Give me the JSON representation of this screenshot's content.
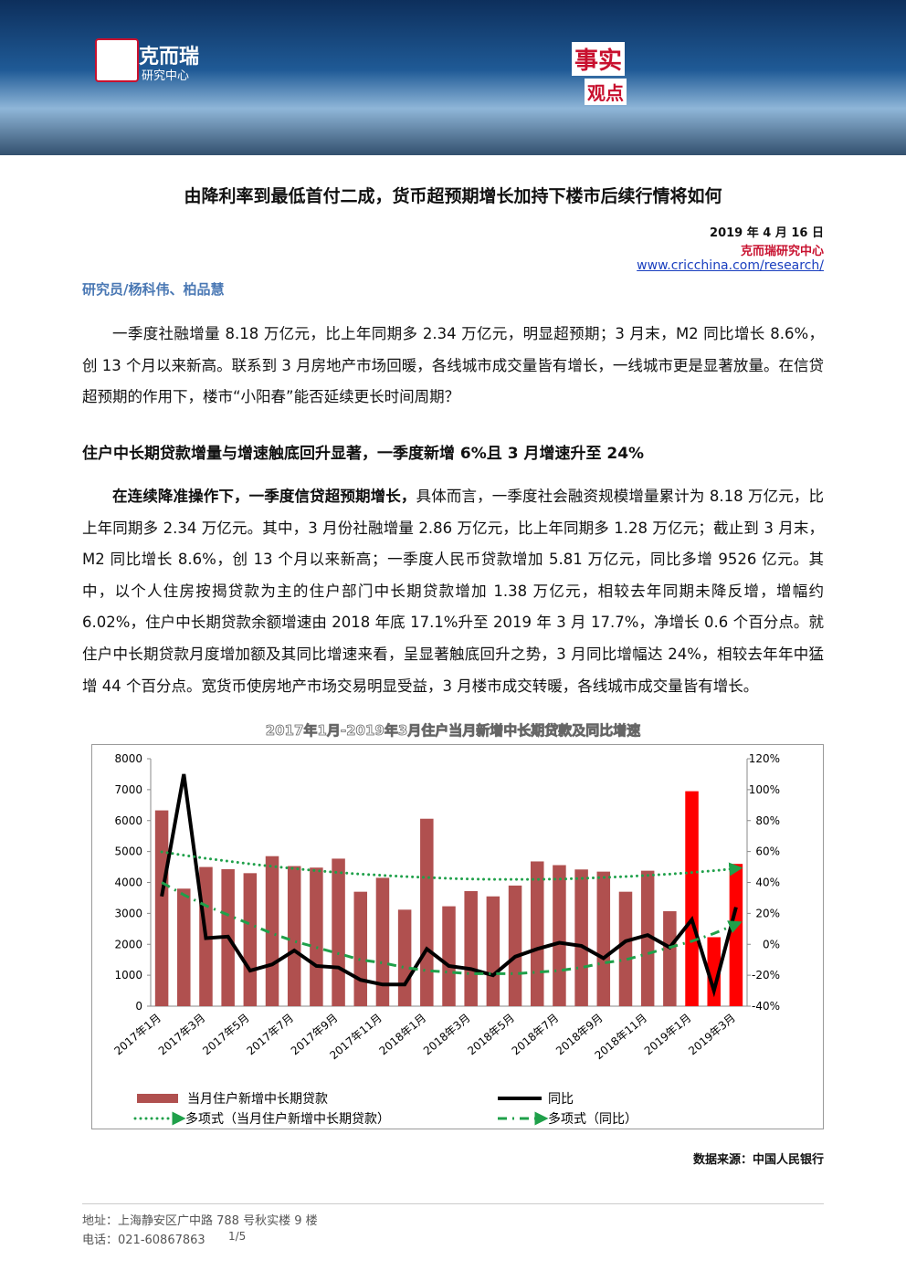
{
  "header": {
    "logo": "克而瑞",
    "logo_sub": "研究中心",
    "slogan_1": "事实",
    "slogan_2": "观点"
  },
  "title": "由降利率到最低首付二成，货币超预期增长加持下楼市后续行情将如何",
  "date": "2019 年 4 月 16 日",
  "org": "克而瑞研究中心",
  "url": "www.cricchina.com/research/",
  "authors": "研究员/杨科伟、柏品慧",
  "paragraphs": [
    {
      "text": "一季度社融增量 8.18 万亿元，比上年同期多 2.34 万亿元，明显超预期；3 月末，M2 同比增长 8.6%，创 13 个月以来新高。联系到 3 月房地产市场回暖，各线城市成交量皆有增长，一线城市更是显著放量。在信贷超预期的作用下，楼市“小阳春”能否延续更长时间周期？"
    }
  ],
  "section_heading": "住户中长期贷款增量与增速触底回升显著，一季度新增 6%且 3 月增速升至 24%",
  "section_paragraph": {
    "lead": "在连续降准操作下，一季度信贷超预期增长，",
    "text": "具体而言，一季度社会融资规模增量累计为 8.18 万亿元，比上年同期多 2.34 万亿元。其中，3 月份社融增量 2.86 万亿元，比上年同期多 1.28 万亿元；截止到 3 月末，M2 同比增长 8.6%，创 13 个月以来新高；一季度人民币贷款增加 5.81 万亿元，同比多增 9526 亿元。其中，以个人住房按揭贷款为主的住户部门中长期贷款增加 1.38 万亿元，相较去年同期未降反增，增幅约 6.02%，住户中长期贷款余额增速由 2018 年底 17.1%升至 2019 年 3 月 17.7%，净增长 0.6 个百分点。就住户中长期贷款月度增加额及其同比增速来看，呈显著触底回升之势，3 月同比增幅达 24%，相较去年年中猛增 44 个百分点。宽货币使房地产市场交易明显受益，3 月楼市成交转暖，各线城市成交量皆有增长。"
  },
  "chart_data": {
    "type": "bar",
    "title": "2017年1月-2019年3月住户当月新增中长期贷款及同比增速",
    "categories": [
      "2017年1月",
      null,
      "2017年3月",
      null,
      "2017年5月",
      null,
      "2017年7月",
      null,
      "2017年9月",
      null,
      "2017年11月",
      null,
      "2018年1月",
      null,
      "2018年3月",
      null,
      "2018年5月",
      null,
      "2018年7月",
      null,
      "2018年9月",
      null,
      "2018年11月",
      null,
      "2019年1月",
      null,
      "2019年3月"
    ],
    "series": [
      {
        "name": "当月住户新增中长期贷款",
        "type": "bar",
        "axis": "y",
        "color": "#b0504f",
        "colors": [
          "#b0504f",
          "#b0504f",
          "#b0504f",
          "#b0504f",
          "#b0504f",
          "#b0504f",
          "#b0504f",
          "#b0504f",
          "#b0504f",
          "#b0504f",
          "#b0504f",
          "#b0504f",
          "#b0504f",
          "#b0504f",
          "#b0504f",
          "#b0504f",
          "#b0504f",
          "#b0504f",
          "#b0504f",
          "#b0504f",
          "#b0504f",
          "#b0504f",
          "#b0504f",
          "#b0504f",
          "#ff0000",
          "#ff0000",
          "#ff0000"
        ],
        "values": [
          6330,
          3800,
          4500,
          4430,
          4300,
          4850,
          4530,
          4480,
          4770,
          3700,
          4150,
          3120,
          6060,
          3230,
          3720,
          3550,
          3900,
          4680,
          4560,
          4420,
          4350,
          3700,
          4380,
          3070,
          6950,
          2230,
          4600
        ]
      },
      {
        "name": "同比",
        "type": "line",
        "axis": "y2",
        "color": "#000000",
        "values": [
          31,
          110,
          4,
          5,
          -17,
          -13,
          -4,
          -14,
          -15,
          -23,
          -26,
          -26,
          -3,
          -14,
          -16,
          -20,
          -8,
          -3,
          1,
          -1,
          -9,
          2,
          6,
          -2,
          16,
          -30,
          24
        ]
      },
      {
        "name": "多项式（当月住户新增中长期贷款）",
        "type": "line",
        "dash": "dotted",
        "axis": "y",
        "color": "#1fa04a",
        "values": [
          4990,
          4880,
          4780,
          4690,
          4600,
          4520,
          4450,
          4380,
          4320,
          4270,
          4230,
          4190,
          4160,
          4130,
          4110,
          4100,
          4100,
          4100,
          4110,
          4130,
          4160,
          4190,
          4230,
          4270,
          4320,
          4380,
          4450
        ]
      },
      {
        "name": "多项式（同比）",
        "type": "line",
        "dash": "dashed",
        "axis": "y2",
        "color": "#1fa04a",
        "values": [
          40,
          32,
          25,
          19,
          13,
          7,
          2,
          -2,
          -6,
          -10,
          -12,
          -15,
          -17,
          -18,
          -19,
          -19,
          -19,
          -18,
          -17,
          -15,
          -12,
          -10,
          -6,
          -2,
          2,
          7,
          13
        ]
      }
    ],
    "ylim": [
      0,
      8000
    ],
    "yticks": [
      0,
      1000,
      2000,
      3000,
      4000,
      5000,
      6000,
      7000,
      8000
    ],
    "y2lim": [
      -40,
      120
    ],
    "y2ticks": [
      {
        "value": -40,
        "label": "-40%"
      },
      {
        "value": -20,
        "label": "-20%"
      },
      {
        "value": 0,
        "label": "0%"
      },
      {
        "value": 20,
        "label": "20%"
      },
      {
        "value": 40,
        "label": "40%"
      },
      {
        "value": 60,
        "label": "60%"
      },
      {
        "value": 80,
        "label": "80%"
      },
      {
        "value": 100,
        "label": "100%"
      },
      {
        "value": 120,
        "label": "120%"
      }
    ],
    "grid": false
  },
  "source": "数据来源：中国人民银行",
  "footer": {
    "address": "地址：上海静安区广中路 788 号秋实楼 9 楼",
    "phone": "电话：021-60867863",
    "page": "1/5"
  }
}
